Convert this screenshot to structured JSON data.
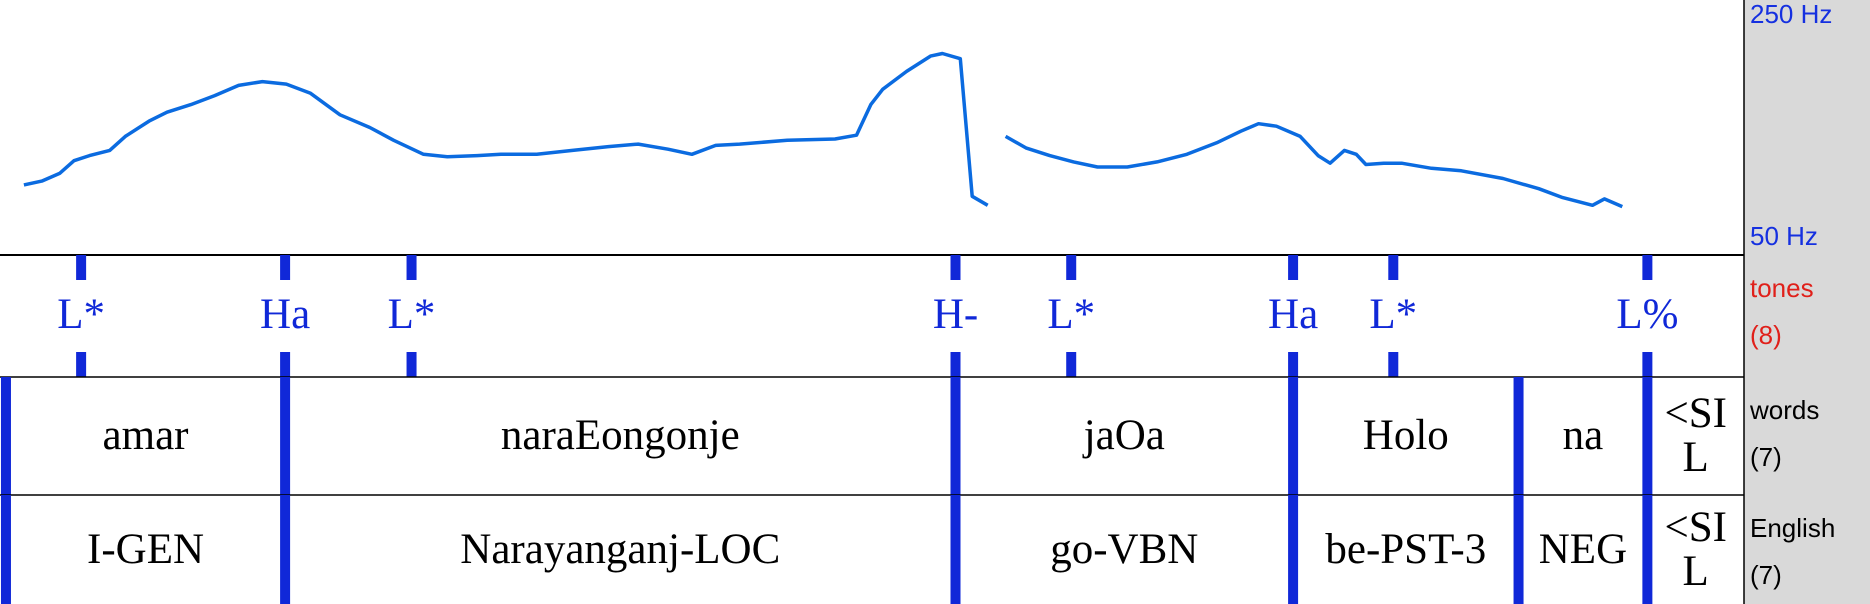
{
  "pitch": {
    "type": "line",
    "color": "#0b6be0",
    "xlim": [
      0,
      1.462
    ],
    "ylim": [
      50,
      250
    ],
    "yticks": [
      {
        "value": 250,
        "label": "250 Hz"
      },
      {
        "value": 50,
        "label": "50 Hz"
      }
    ],
    "x": [
      0.02,
      0.035,
      0.05,
      0.062,
      0.075,
      0.092,
      0.105,
      0.125,
      0.14,
      0.16,
      0.18,
      0.2,
      0.22,
      0.24,
      0.26,
      0.285,
      0.31,
      0.33,
      0.355,
      0.375,
      0.4,
      0.42,
      0.45,
      0.48,
      0.51,
      0.535,
      0.56,
      0.58,
      0.6,
      0.62,
      0.66,
      0.7,
      0.718,
      0.73,
      0.74,
      0.76,
      0.78,
      0.79,
      0.805,
      0.815,
      0.828,
      0.835,
      0.843,
      0.86,
      0.88,
      0.9,
      0.92,
      0.945,
      0.97,
      0.995,
      1.02,
      1.04,
      1.055,
      1.07,
      1.09,
      1.105,
      1.115,
      1.127,
      1.137,
      1.145,
      1.16,
      1.175,
      1.2,
      1.225,
      1.26,
      1.29,
      1.31,
      1.335,
      1.345,
      1.36
    ],
    "values": [
      105,
      108,
      114,
      124,
      128,
      132,
      143,
      155,
      162,
      168,
      175,
      183,
      186,
      184,
      177,
      160,
      150,
      140,
      129,
      127,
      128,
      129,
      129,
      132,
      135,
      137,
      133,
      129,
      136,
      137,
      140,
      141,
      144,
      168,
      180,
      194,
      206,
      208,
      204,
      96,
      89,
      null,
      143,
      134,
      128,
      123,
      119,
      119,
      123,
      129,
      138,
      147,
      153,
      151,
      143,
      128,
      122,
      132,
      129,
      121,
      122,
      122,
      118,
      116,
      110,
      102,
      95,
      89,
      94,
      88
    ]
  },
  "tiers": [
    {
      "name": "tones",
      "count": "(8)",
      "points": [
        {
          "time": 0.068,
          "label": "L*"
        },
        {
          "time": 0.239,
          "label": "Ha"
        },
        {
          "time": 0.345,
          "label": "L*"
        },
        {
          "time": 0.801,
          "label": "H-"
        },
        {
          "time": 0.898,
          "label": "L*"
        },
        {
          "time": 1.084,
          "label": "Ha"
        },
        {
          "time": 1.168,
          "label": "L*"
        },
        {
          "time": 1.381,
          "label": "L%"
        }
      ]
    },
    {
      "name": "words",
      "count": "(7)",
      "intervals": [
        {
          "start": 0.005,
          "end": 0.239,
          "label": "amar"
        },
        {
          "start": 0.239,
          "end": 0.801,
          "label": "naraEongonje"
        },
        {
          "start": 0.801,
          "end": 1.084,
          "label": "jaOa"
        },
        {
          "start": 1.084,
          "end": 1.273,
          "label": "Holo"
        },
        {
          "start": 1.273,
          "end": 1.381,
          "label": "na"
        },
        {
          "start": 1.381,
          "end": 1.462,
          "label": "<SIL"
        }
      ]
    },
    {
      "name": "English",
      "count": "(7)",
      "intervals": [
        {
          "start": 0.005,
          "end": 0.239,
          "label": "I-GEN"
        },
        {
          "start": 0.239,
          "end": 0.801,
          "label": "Narayanganj-LOC"
        },
        {
          "start": 0.801,
          "end": 1.084,
          "label": "go-VBN"
        },
        {
          "start": 1.084,
          "end": 1.273,
          "label": "be-PST-3"
        },
        {
          "start": 1.273,
          "end": 1.381,
          "label": "NEG"
        },
        {
          "start": 1.381,
          "end": 1.462,
          "label": "<SIL"
        }
      ]
    }
  ]
}
